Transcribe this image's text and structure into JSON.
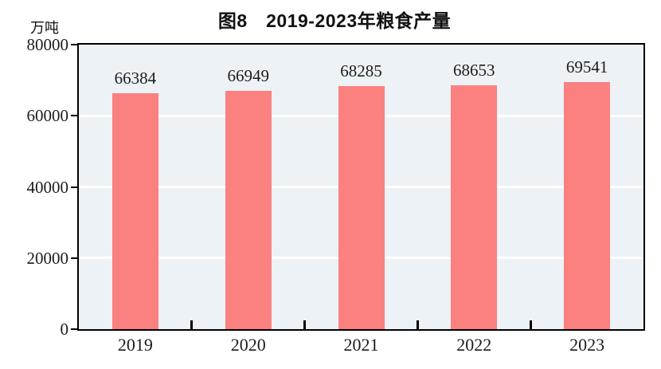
{
  "chart_data": {
    "type": "bar",
    "title": "图8　2019-2023年粮食产量",
    "ylabel": "万吨",
    "xlabel": "",
    "categories": [
      "2019",
      "2020",
      "2021",
      "2022",
      "2023"
    ],
    "values": [
      66384,
      66949,
      68285,
      68653,
      69541
    ],
    "ylim": [
      0,
      80000
    ],
    "yticks": [
      0,
      20000,
      40000,
      60000,
      80000
    ],
    "gridlines": [
      20000,
      40000,
      60000
    ],
    "grid": "horizontal-white",
    "legend": "none",
    "bar_color": "#FB8080",
    "plot_bg_color": "#ECF2F6",
    "axis_color": "#000000",
    "text_color": "#1c1c1c"
  }
}
